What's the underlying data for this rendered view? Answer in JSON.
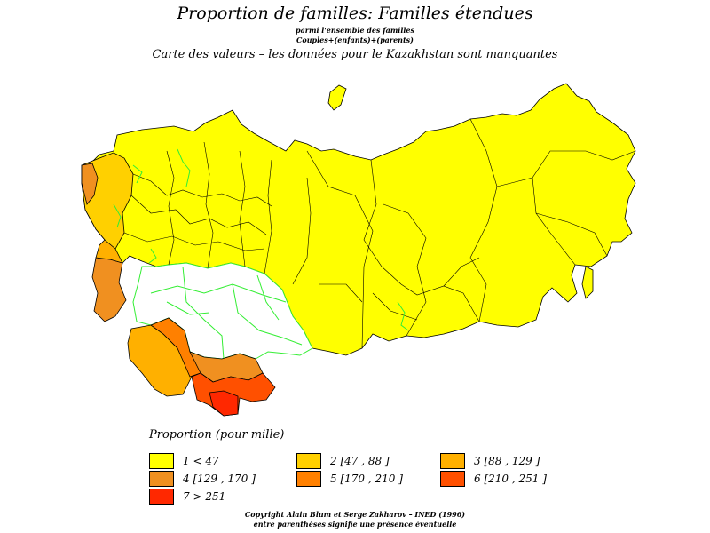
{
  "title": "Proportion de familles: Familles étendues",
  "subtitle_1": "parmi l'ensemble des familles",
  "subtitle_2": "Couples+(enfants)+(parents)",
  "subtitle_3": "Carte des valeurs  –  les données pour le Kazakhstan sont manquantes",
  "legend": {
    "title": "Proportion (pour mille)",
    "items": [
      {
        "label": "1  <  47",
        "color": "#ffff00"
      },
      {
        "label": "2 [47  ,  88 ]",
        "color": "#ffd000"
      },
      {
        "label": "3 [88  ,  129 ]",
        "color": "#ffb000"
      },
      {
        "label": "4 [129  ,  170 ]",
        "color": "#f09020"
      },
      {
        "label": "5 [170  ,  210 ]",
        "color": "#ff8000"
      },
      {
        "label": "6 [210  ,  251 ]",
        "color": "#ff5000"
      },
      {
        "label": "7  >  251",
        "color": "#ff2800"
      }
    ]
  },
  "footer": {
    "line1": "Copyright Alain Blum et Serge Zakharov  –  INED (1996)",
    "line2": "entre parenthèses signifie une présence éventuelle"
  },
  "colors": {
    "missing_region_border": "#33ee33",
    "region_border": "#000000",
    "missing_fill": "#ffffff"
  }
}
